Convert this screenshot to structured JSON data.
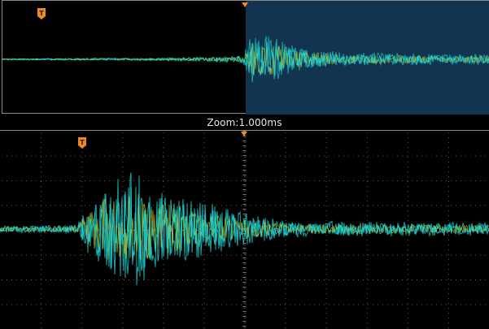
{
  "zoom_label": "Zoom:1.000ms",
  "trigger_marker_label": "T",
  "icons": {
    "trigger_marker": "trigger-flag-icon",
    "zoom_position_marker": "triangle-down-icon"
  },
  "colors": {
    "background": "#000000",
    "zoom_window": "#123450",
    "grid": "#6d6d6d",
    "trace_cyan": "#19d2d2",
    "trace_teal": "#1aa3a3",
    "trace_yellow": "#c8c81e",
    "trigger_marker": "#f08a1e",
    "panel_border": "#8a8a8a"
  }
}
